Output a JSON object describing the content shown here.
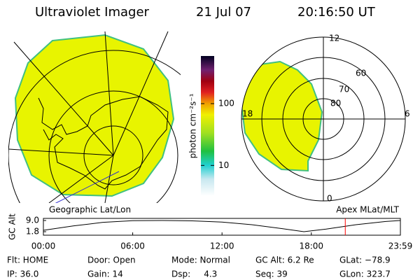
{
  "header": {
    "title": "Ultraviolet Imager",
    "date": "21 Jul 07",
    "time": "20:16:50 UT"
  },
  "geo_panel": {
    "label": "Geographic Lat/Lon"
  },
  "polar_panel": {
    "label": "Apex MLat/MLT",
    "lat_labels": [
      "80",
      "70",
      "60"
    ],
    "mlt_labels": {
      "top": "12",
      "right": "6",
      "left": "18",
      "bottom": "0"
    }
  },
  "chart_data": [
    {
      "type": "colorbar",
      "label": "photon cm⁻²s⁻¹",
      "log_scale": true,
      "ylim": [
        3.2,
        590
      ],
      "yticks": [
        10,
        100
      ]
    },
    {
      "type": "line",
      "y_label": "GC Alt",
      "x": [
        0,
        2,
        4,
        6,
        8,
        10,
        12,
        14,
        16,
        17.5,
        19,
        21,
        23,
        23.983
      ],
      "series": [
        {
          "color": "#000000",
          "values": [
            2.7,
            5.5,
            7.8,
            8.9,
            9.0,
            8.8,
            8.0,
            6.3,
            3.8,
            1.8,
            3.5,
            6.3,
            8.4,
            9.0
          ]
        }
      ],
      "xlim": [
        0,
        23.983
      ],
      "xticks": [
        {
          "value": 0,
          "label": "00:00"
        },
        {
          "value": 6,
          "label": "06:00"
        },
        {
          "value": 12,
          "label": "12:00"
        },
        {
          "value": 18,
          "label": "18:00"
        },
        {
          "value": 23.983,
          "label": "23:59"
        }
      ],
      "ylim": [
        -0.45,
        10.35
      ],
      "yticks": [
        1.8,
        {
          "value": 9,
          "label": "9.0"
        }
      ],
      "marker_x": 20.28,
      "marker_color": "#ff0000"
    }
  ],
  "status": [
    [
      "Flt: HOME",
      "Door: Open",
      "Mode: Normal",
      "GC Alt: 6.2 Re",
      "GLat: −78.9"
    ],
    [
      "IP: 36.0",
      "Gain: 14",
      "Dsp:     4.3",
      "Seq: 39",
      "GLon: 323.7"
    ]
  ]
}
